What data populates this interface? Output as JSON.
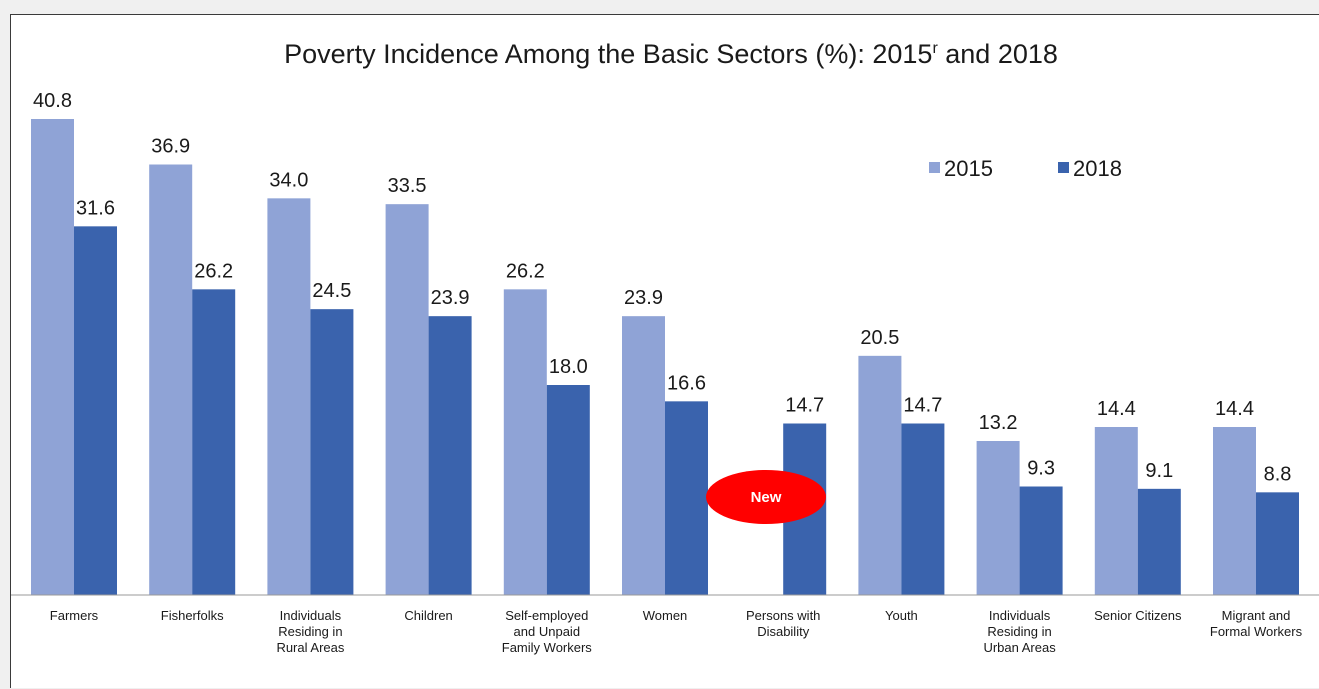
{
  "chart_data": {
    "type": "bar",
    "title": "Poverty Incidence Among the Basic Sectors (%): 2015",
    "title_superscript": "r",
    "title_suffix": " and 2018",
    "categories": [
      [
        "Farmers"
      ],
      [
        "Fisherfolks"
      ],
      [
        "Individuals",
        "Residing in",
        "Rural Areas"
      ],
      [
        "Children"
      ],
      [
        "Self-employed",
        "and Unpaid",
        "Family Workers"
      ],
      [
        "Women"
      ],
      [
        "Persons with",
        "Disability"
      ],
      [
        "Youth"
      ],
      [
        "Individuals",
        "Residing in",
        "Urban Areas"
      ],
      [
        "Senior Citizens"
      ],
      [
        "Migrant and",
        "Formal Workers"
      ]
    ],
    "series": [
      {
        "name": "2015",
        "color": "#8fa3d6",
        "values": [
          40.8,
          36.9,
          34.0,
          33.5,
          26.2,
          23.9,
          null,
          20.5,
          13.2,
          14.4,
          14.4
        ]
      },
      {
        "name": "2018",
        "color": "#3a63ad",
        "values": [
          31.6,
          26.2,
          24.5,
          23.9,
          18.0,
          16.6,
          14.7,
          14.7,
          9.3,
          9.1,
          8.8
        ]
      }
    ],
    "ylim": [
      0,
      40.8
    ],
    "grid": false,
    "legend_position": "top-right",
    "annotations": [
      {
        "text": "New",
        "category_index": 6,
        "color": "#ff0000"
      }
    ]
  }
}
